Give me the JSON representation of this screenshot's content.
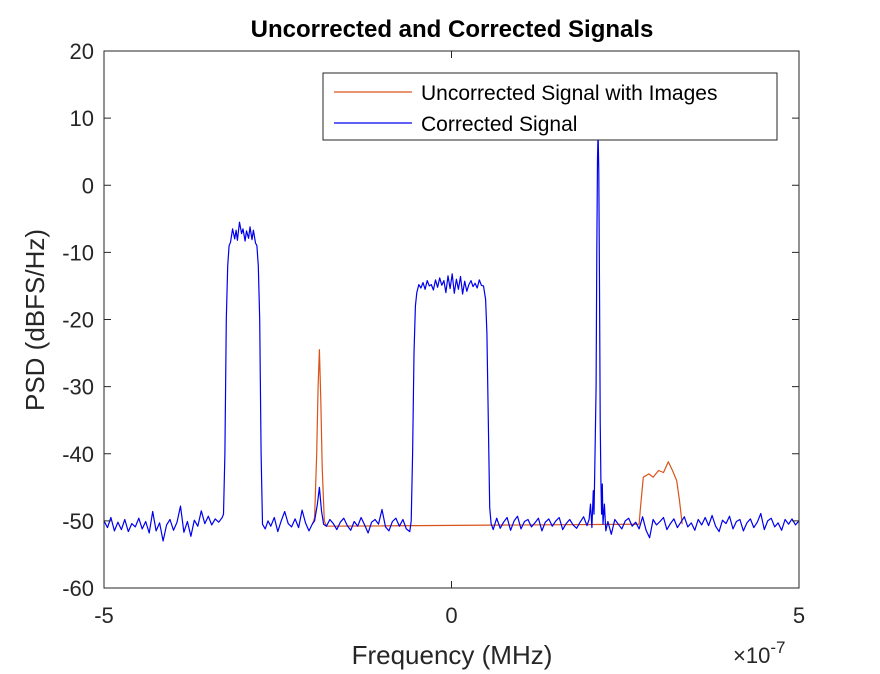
{
  "chart_data": {
    "type": "line",
    "title": "Uncorrected and Corrected Signals",
    "xlabel": "Frequency (MHz)",
    "ylabel": "PSD (dBFS/Hz)",
    "x_exponent_label": "×10",
    "x_exponent_power": "-7",
    "xlim": [
      -5,
      5
    ],
    "ylim": [
      -60,
      20
    ],
    "x_ticks": [
      -5,
      0,
      5
    ],
    "y_ticks": [
      20,
      10,
      0,
      -10,
      -20,
      -30,
      -40,
      -50,
      -60
    ],
    "grid": false,
    "legend_position": "top-right",
    "series": [
      {
        "name": "Uncorrected Signal with Images",
        "color": "#d95319",
        "points": [
          [
            -2.0,
            -50.5
          ],
          [
            -1.97,
            -49.5
          ],
          [
            -1.94,
            -40
          ],
          [
            -1.92,
            -30
          ],
          [
            -1.9,
            -24.5
          ],
          [
            -1.88,
            -32
          ],
          [
            -1.86,
            -42
          ],
          [
            -1.83,
            -50
          ],
          [
            -1.8,
            -50.8
          ],
          [
            2.7,
            -50.5
          ],
          [
            2.72,
            -48
          ],
          [
            2.76,
            -43.5
          ],
          [
            2.84,
            -43
          ],
          [
            2.9,
            -43.5
          ],
          [
            2.98,
            -42.5
          ],
          [
            3.05,
            -42.8
          ],
          [
            3.12,
            -41.2
          ],
          [
            3.18,
            -42.5
          ],
          [
            3.24,
            -44
          ],
          [
            3.28,
            -47
          ],
          [
            3.32,
            -50.5
          ]
        ]
      },
      {
        "name": "Corrected Signal",
        "color": "#0000ee",
        "points": [
          [
            -5.0,
            -50
          ],
          [
            -4.95,
            -51
          ],
          [
            -4.9,
            -49.5
          ],
          [
            -4.85,
            -51.5
          ],
          [
            -4.8,
            -50.2
          ],
          [
            -4.75,
            -51.3
          ],
          [
            -4.7,
            -49.8
          ],
          [
            -4.65,
            -51.6
          ],
          [
            -4.6,
            -50.4
          ],
          [
            -4.55,
            -50.9
          ],
          [
            -4.5,
            -49.6
          ],
          [
            -4.45,
            -51.2
          ],
          [
            -4.4,
            -50.1
          ],
          [
            -4.35,
            -51.8
          ],
          [
            -4.3,
            -48.6
          ],
          [
            -4.25,
            -51.5
          ],
          [
            -4.2,
            -50.3
          ],
          [
            -4.15,
            -53
          ],
          [
            -4.1,
            -50.6
          ],
          [
            -4.05,
            -49.8
          ],
          [
            -4.0,
            -51.4
          ],
          [
            -3.95,
            -50.2
          ],
          [
            -3.9,
            -47.8
          ],
          [
            -3.85,
            -51.7
          ],
          [
            -3.8,
            -50.1
          ],
          [
            -3.75,
            -52.3
          ],
          [
            -3.7,
            -49.9
          ],
          [
            -3.65,
            -50.8
          ],
          [
            -3.6,
            -48.5
          ],
          [
            -3.55,
            -50.4
          ],
          [
            -3.5,
            -49.3
          ],
          [
            -3.45,
            -50.6
          ],
          [
            -3.4,
            -49.7
          ],
          [
            -3.35,
            -50.2
          ],
          [
            -3.3,
            -49.5
          ],
          [
            -3.28,
            -49
          ],
          [
            -3.26,
            -40
          ],
          [
            -3.24,
            -20
          ],
          [
            -3.22,
            -12
          ],
          [
            -3.2,
            -9
          ],
          [
            -3.18,
            -8.5
          ],
          [
            -3.15,
            -6.5
          ],
          [
            -3.12,
            -8
          ],
          [
            -3.1,
            -6.7
          ],
          [
            -3.08,
            -8.2
          ],
          [
            -3.05,
            -5.5
          ],
          [
            -3.02,
            -7.2
          ],
          [
            -3.0,
            -6.5
          ],
          [
            -2.97,
            -8.3
          ],
          [
            -2.95,
            -6.8
          ],
          [
            -2.92,
            -7.9
          ],
          [
            -2.9,
            -6.2
          ],
          [
            -2.87,
            -8.1
          ],
          [
            -2.85,
            -6.7
          ],
          [
            -2.82,
            -8.6
          ],
          [
            -2.8,
            -9
          ],
          [
            -2.78,
            -12
          ],
          [
            -2.76,
            -20
          ],
          [
            -2.74,
            -40
          ],
          [
            -2.72,
            -50.5
          ],
          [
            -2.68,
            -51.2
          ],
          [
            -2.64,
            -50
          ],
          [
            -2.6,
            -50.8
          ],
          [
            -2.55,
            -49.5
          ],
          [
            -2.5,
            -51.6
          ],
          [
            -2.45,
            -50
          ],
          [
            -2.4,
            -48.6
          ],
          [
            -2.35,
            -50.4
          ],
          [
            -2.3,
            -50.9
          ],
          [
            -2.25,
            -49.7
          ],
          [
            -2.2,
            -51
          ],
          [
            -2.15,
            -48.4
          ],
          [
            -2.1,
            -50.3
          ],
          [
            -2.05,
            -51.5
          ],
          [
            -2.0,
            -50.4
          ],
          [
            -1.97,
            -50
          ],
          [
            -1.93,
            -47.5
          ],
          [
            -1.9,
            -45
          ],
          [
            -1.87,
            -48.5
          ],
          [
            -1.84,
            -50.5
          ],
          [
            -1.8,
            -50.8
          ],
          [
            -1.75,
            -49.8
          ],
          [
            -1.7,
            -50.4
          ],
          [
            -1.65,
            -51.3
          ],
          [
            -1.6,
            -50.2
          ],
          [
            -1.55,
            -49.6
          ],
          [
            -1.5,
            -50.7
          ],
          [
            -1.45,
            -51.4
          ],
          [
            -1.4,
            -50.1
          ],
          [
            -1.35,
            -50.8
          ],
          [
            -1.3,
            -49.5
          ],
          [
            -1.25,
            -50.6
          ],
          [
            -1.2,
            -51.8
          ],
          [
            -1.15,
            -50.2
          ],
          [
            -1.1,
            -49.8
          ],
          [
            -1.05,
            -50.5
          ],
          [
            -1.0,
            -48.3
          ],
          [
            -0.95,
            -50.9
          ],
          [
            -0.9,
            -51.5
          ],
          [
            -0.85,
            -50.1
          ],
          [
            -0.8,
            -49.6
          ],
          [
            -0.75,
            -50.8
          ],
          [
            -0.7,
            -49.8
          ],
          [
            -0.65,
            -51.2
          ],
          [
            -0.6,
            -51.6
          ],
          [
            -0.58,
            -50
          ],
          [
            -0.56,
            -40
          ],
          [
            -0.54,
            -25
          ],
          [
            -0.52,
            -18
          ],
          [
            -0.5,
            -16
          ],
          [
            -0.47,
            -14.8
          ],
          [
            -0.44,
            -15.3
          ],
          [
            -0.41,
            -14.5
          ],
          [
            -0.38,
            -15.5
          ],
          [
            -0.35,
            -14.2
          ],
          [
            -0.32,
            -15
          ],
          [
            -0.29,
            -14.8
          ],
          [
            -0.26,
            -15.6
          ],
          [
            -0.23,
            -14.1
          ],
          [
            -0.2,
            -15.2
          ],
          [
            -0.17,
            -13.8
          ],
          [
            -0.14,
            -14.9
          ],
          [
            -0.11,
            -14.2
          ],
          [
            -0.08,
            -16
          ],
          [
            -0.05,
            -13.5
          ],
          [
            -0.02,
            -15.4
          ],
          [
            0.01,
            -13.2
          ],
          [
            0.04,
            -16.1
          ],
          [
            0.07,
            -14
          ],
          [
            0.1,
            -15.5
          ],
          [
            0.13,
            -13.6
          ],
          [
            0.16,
            -16.2
          ],
          [
            0.19,
            -14.3
          ],
          [
            0.22,
            -15.8
          ],
          [
            0.25,
            -14.8
          ],
          [
            0.28,
            -14.2
          ],
          [
            0.31,
            -15.1
          ],
          [
            0.34,
            -14.6
          ],
          [
            0.37,
            -15.3
          ],
          [
            0.4,
            -14.1
          ],
          [
            0.43,
            -14.9
          ],
          [
            0.46,
            -15
          ],
          [
            0.49,
            -17
          ],
          [
            0.51,
            -22
          ],
          [
            0.53,
            -35
          ],
          [
            0.55,
            -48
          ],
          [
            0.57,
            -50.4
          ],
          [
            0.6,
            -51.3
          ],
          [
            0.65,
            -49.6
          ],
          [
            0.7,
            -51.1
          ],
          [
            0.75,
            -50.2
          ],
          [
            0.8,
            -49.5
          ],
          [
            0.85,
            -51.4
          ],
          [
            0.9,
            -50
          ],
          [
            0.95,
            -49.3
          ],
          [
            1.0,
            -51.2
          ],
          [
            1.05,
            -50.1
          ],
          [
            1.1,
            -49.8
          ],
          [
            1.15,
            -50.9
          ],
          [
            1.2,
            -50.3
          ],
          [
            1.25,
            -49.6
          ],
          [
            1.3,
            -51.5
          ],
          [
            1.35,
            -50.2
          ],
          [
            1.4,
            -49.7
          ],
          [
            1.45,
            -50.8
          ],
          [
            1.5,
            -50
          ],
          [
            1.55,
            -49.5
          ],
          [
            1.6,
            -51.3
          ],
          [
            1.65,
            -50.4
          ],
          [
            1.7,
            -49.8
          ],
          [
            1.75,
            -50.6
          ],
          [
            1.8,
            -51.1
          ],
          [
            1.85,
            -50.2
          ],
          [
            1.9,
            -49.4
          ],
          [
            1.95,
            -50.7
          ],
          [
            1.98,
            -49.8
          ],
          [
            2.0,
            -47.5
          ],
          [
            2.02,
            -51
          ],
          [
            2.04,
            -45.5
          ],
          [
            2.05,
            -49
          ],
          [
            2.06,
            -43
          ],
          [
            2.08,
            -30
          ],
          [
            2.09,
            -10
          ],
          [
            2.1,
            4
          ],
          [
            2.11,
            8
          ],
          [
            2.12,
            2
          ],
          [
            2.13,
            -15
          ],
          [
            2.14,
            -35
          ],
          [
            2.15,
            -44
          ],
          [
            2.16,
            -49
          ],
          [
            2.17,
            -44.5
          ],
          [
            2.18,
            -50.5
          ],
          [
            2.2,
            -47.5
          ],
          [
            2.22,
            -51.5
          ],
          [
            2.25,
            -50.1
          ],
          [
            2.3,
            -52
          ],
          [
            2.35,
            -49.8
          ],
          [
            2.4,
            -50.5
          ],
          [
            2.45,
            -51.2
          ],
          [
            2.5,
            -50
          ],
          [
            2.55,
            -49.6
          ],
          [
            2.6,
            -50.8
          ],
          [
            2.65,
            -50.2
          ],
          [
            2.7,
            -51.2
          ],
          [
            2.75,
            -49.4
          ],
          [
            2.8,
            -51.4
          ],
          [
            2.85,
            -52.5
          ],
          [
            2.9,
            -49.8
          ],
          [
            2.95,
            -50.6
          ],
          [
            3.0,
            -50.1
          ],
          [
            3.05,
            -49.5
          ],
          [
            3.1,
            -51.3
          ],
          [
            3.15,
            -50.4
          ],
          [
            3.2,
            -49.7
          ],
          [
            3.25,
            -51
          ],
          [
            3.3,
            -50.2
          ],
          [
            3.35,
            -49.4
          ],
          [
            3.4,
            -50.9
          ],
          [
            3.45,
            -50.3
          ],
          [
            3.5,
            -51.4
          ],
          [
            3.55,
            -49.8
          ],
          [
            3.6,
            -50.6
          ],
          [
            3.65,
            -49.5
          ],
          [
            3.7,
            -50.7
          ],
          [
            3.75,
            -49.2
          ],
          [
            3.8,
            -50.8
          ],
          [
            3.85,
            -51.6
          ],
          [
            3.9,
            -49.9
          ],
          [
            3.95,
            -50.4
          ],
          [
            4.0,
            -49.3
          ],
          [
            4.05,
            -51.2
          ],
          [
            4.1,
            -50.1
          ],
          [
            4.15,
            -49.8
          ],
          [
            4.2,
            -51.5
          ],
          [
            4.25,
            -50.3
          ],
          [
            4.3,
            -49.7
          ],
          [
            4.35,
            -51
          ],
          [
            4.4,
            -50.2
          ],
          [
            4.45,
            -48.9
          ],
          [
            4.5,
            -51.3
          ],
          [
            4.55,
            -50
          ],
          [
            4.6,
            -49.6
          ],
          [
            4.65,
            -50.9
          ],
          [
            4.7,
            -50.3
          ],
          [
            4.75,
            -51.4
          ],
          [
            4.8,
            -49.8
          ],
          [
            4.85,
            -50.5
          ],
          [
            4.9,
            -49.7
          ],
          [
            4.95,
            -50.6
          ],
          [
            5.0,
            -50
          ]
        ]
      }
    ]
  }
}
